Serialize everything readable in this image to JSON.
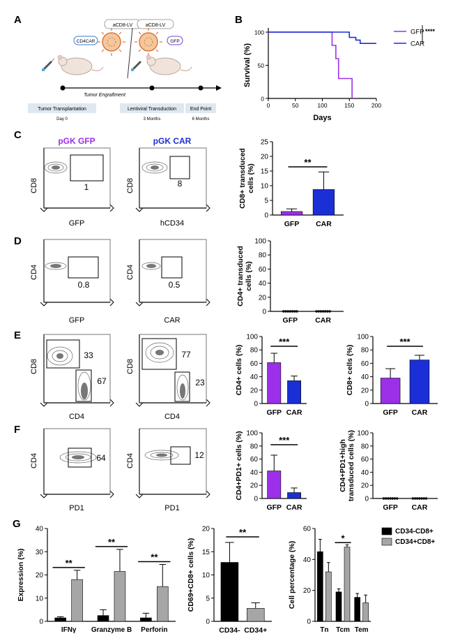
{
  "panel_letters": [
    "A",
    "B",
    "C",
    "D",
    "E",
    "F",
    "G"
  ],
  "schematic": {
    "vector_left": "aCD8-LV",
    "vector_right": "aCD8-LV",
    "payload_left": "CD4CAR",
    "payload_right": "GFP",
    "timeline_label": "Tumor Engraftment",
    "steps": [
      {
        "label": "Tumor Transplantation",
        "time": "Day 0"
      },
      {
        "label": "Lentiviral Transduction",
        "time": "3 Months"
      },
      {
        "label": "End Point",
        "time": "6 Months"
      }
    ]
  },
  "flow": {
    "C": {
      "titles": [
        "pGK GFP",
        "pGK CAR"
      ],
      "title_colors": [
        "#9b30e8",
        "#1a2fd6"
      ],
      "plots": [
        {
          "ylabel": "CD8",
          "xlabel": "GFP",
          "values": [
            "1"
          ]
        },
        {
          "ylabel": "CD8",
          "xlabel": "hCD34",
          "values": [
            "8"
          ]
        }
      ]
    },
    "D": {
      "plots": [
        {
          "ylabel": "CD4",
          "xlabel": "GFP",
          "values": [
            "0.8"
          ]
        },
        {
          "ylabel": "CD4",
          "xlabel": "CAR",
          "values": [
            "0.5"
          ]
        }
      ]
    },
    "E": {
      "plots": [
        {
          "ylabel": "CD8",
          "xlabel": "CD4",
          "values": [
            "33",
            "67"
          ]
        },
        {
          "ylabel": "CD8",
          "xlabel": "CD4",
          "values": [
            "77",
            "23"
          ]
        }
      ]
    },
    "F": {
      "plots": [
        {
          "ylabel": "CD4",
          "xlabel": "PD1",
          "values": [
            "64"
          ]
        },
        {
          "ylabel": "CD4",
          "xlabel": "PD1",
          "values": [
            "12"
          ]
        }
      ]
    }
  },
  "colors": {
    "gfp": "#9b30e8",
    "car": "#1a2fd6",
    "black": "#000000",
    "grey": "#a6a6a6"
  },
  "chart_data": [
    {
      "id": "B",
      "type": "line",
      "xlabel": "Days",
      "ylabel": "Survival (%)",
      "xlim": [
        0,
        200
      ],
      "ylim": [
        0,
        100
      ],
      "xticks": [
        "0",
        "50",
        "100",
        "150",
        "200"
      ],
      "yticks": [
        "0",
        "50",
        "100"
      ],
      "significance": "****",
      "series": [
        {
          "name": "GFP",
          "color": "#9b30e8",
          "x": [
            0,
            118,
            118,
            125,
            125,
            130,
            130,
            155,
            155
          ],
          "y": [
            100,
            100,
            80,
            80,
            60,
            60,
            30,
            30,
            0
          ]
        },
        {
          "name": "CAR",
          "color": "#1a2fd6",
          "x": [
            0,
            150,
            150,
            162,
            162,
            170,
            170,
            200
          ],
          "y": [
            100,
            100,
            92,
            92,
            88,
            88,
            83,
            83
          ]
        }
      ]
    },
    {
      "id": "C-bar",
      "type": "bar",
      "ylabel": "CD8+ transduced cells (%)",
      "categories": [
        "GFP",
        "CAR"
      ],
      "values": [
        1.2,
        8.7
      ],
      "errors": [
        0.9,
        6.0
      ],
      "ylim": [
        0,
        25
      ],
      "yticks": [
        "0",
        "5",
        "10",
        "15",
        "20",
        "25"
      ],
      "significance": "**"
    },
    {
      "id": "D-dot",
      "type": "scatter",
      "ylabel": "CD4+ transduced cells (%)",
      "categories": [
        "GFP",
        "CAR"
      ],
      "values": [
        0,
        0
      ],
      "points_per_group": 7,
      "ylim": [
        0,
        100
      ],
      "yticks": [
        "0",
        "20",
        "40",
        "60",
        "80",
        "100"
      ]
    },
    {
      "id": "E-bar1",
      "type": "bar",
      "ylabel": "CD4+ cells (%)",
      "categories": [
        "GFP",
        "CAR"
      ],
      "values": [
        61,
        34
      ],
      "errors": [
        14,
        7
      ],
      "ylim": [
        0,
        100
      ],
      "yticks": [
        "0",
        "20",
        "40",
        "60",
        "80",
        "100"
      ],
      "significance": "***"
    },
    {
      "id": "E-bar2",
      "type": "bar",
      "ylabel": "CD8+ cells (%)",
      "categories": [
        "GFP",
        "CAR"
      ],
      "values": [
        38,
        65
      ],
      "errors": [
        14,
        7
      ],
      "ylim": [
        0,
        100
      ],
      "yticks": [
        "0",
        "20",
        "40",
        "60",
        "80",
        "100"
      ],
      "significance": "***"
    },
    {
      "id": "F-bar",
      "type": "bar",
      "ylabel": "CD4+PD1+ cells (%)",
      "categories": [
        "GFP",
        "CAR"
      ],
      "values": [
        42,
        9
      ],
      "errors": [
        24,
        7
      ],
      "ylim": [
        0,
        100
      ],
      "yticks": [
        "0",
        "20",
        "40",
        "60",
        "80",
        "100"
      ],
      "significance": "***"
    },
    {
      "id": "F-dot",
      "type": "scatter",
      "ylabel": "CD4+PD1+high transduced cells (%)",
      "categories": [
        "GFP",
        "CAR"
      ],
      "values": [
        0,
        0
      ],
      "points_per_group": 7,
      "ylim": [
        0,
        100
      ],
      "yticks": [
        "0",
        "20",
        "40",
        "60",
        "80",
        "100"
      ]
    },
    {
      "id": "G1",
      "type": "bar",
      "ylabel": "Expression (%)",
      "categories": [
        "IFNγ",
        "Granzyme B",
        "Perforin"
      ],
      "series": [
        {
          "name": "CD34-CD8+",
          "color": "#000000",
          "values": [
            1.5,
            2.5,
            1.5
          ],
          "errors": [
            0.5,
            2.5,
            2
          ]
        },
        {
          "name": "CD34+CD8+",
          "color": "#a6a6a6",
          "values": [
            18,
            21.5,
            15
          ],
          "errors": [
            4,
            9.5,
            9.5
          ]
        }
      ],
      "ylim": [
        0,
        40
      ],
      "yticks": [
        "0",
        "10",
        "20",
        "30",
        "40"
      ],
      "significance": [
        "**",
        "**",
        "**"
      ]
    },
    {
      "id": "G2",
      "type": "bar",
      "ylabel": "CD69+CD8+ cells (%)",
      "categories": [
        "CD34-",
        "CD34+"
      ],
      "values": [
        12.7,
        2.8
      ],
      "errors": [
        4.3,
        1.2
      ],
      "colors": [
        "#000000",
        "#a6a6a6"
      ],
      "ylim": [
        0,
        20
      ],
      "yticks": [
        "0",
        "5",
        "10",
        "15",
        "20"
      ],
      "significance": "**"
    },
    {
      "id": "G3",
      "type": "bar",
      "ylabel": "Cell percentage (%)",
      "categories": [
        "Tn",
        "Tcm",
        "Tem"
      ],
      "series": [
        {
          "name": "CD34-CD8+",
          "color": "#000000",
          "values": [
            45,
            19,
            15.5
          ],
          "errors": [
            8,
            2,
            2.5
          ]
        },
        {
          "name": "CD34+CD8+",
          "color": "#a6a6a6",
          "values": [
            32,
            48,
            12
          ],
          "errors": [
            6,
            1.5,
            5
          ]
        }
      ],
      "ylim": [
        0,
        60
      ],
      "yticks": [
        "0",
        "20",
        "40",
        "60"
      ],
      "significance": [
        null,
        "*",
        null
      ],
      "legend": "top-right"
    }
  ]
}
